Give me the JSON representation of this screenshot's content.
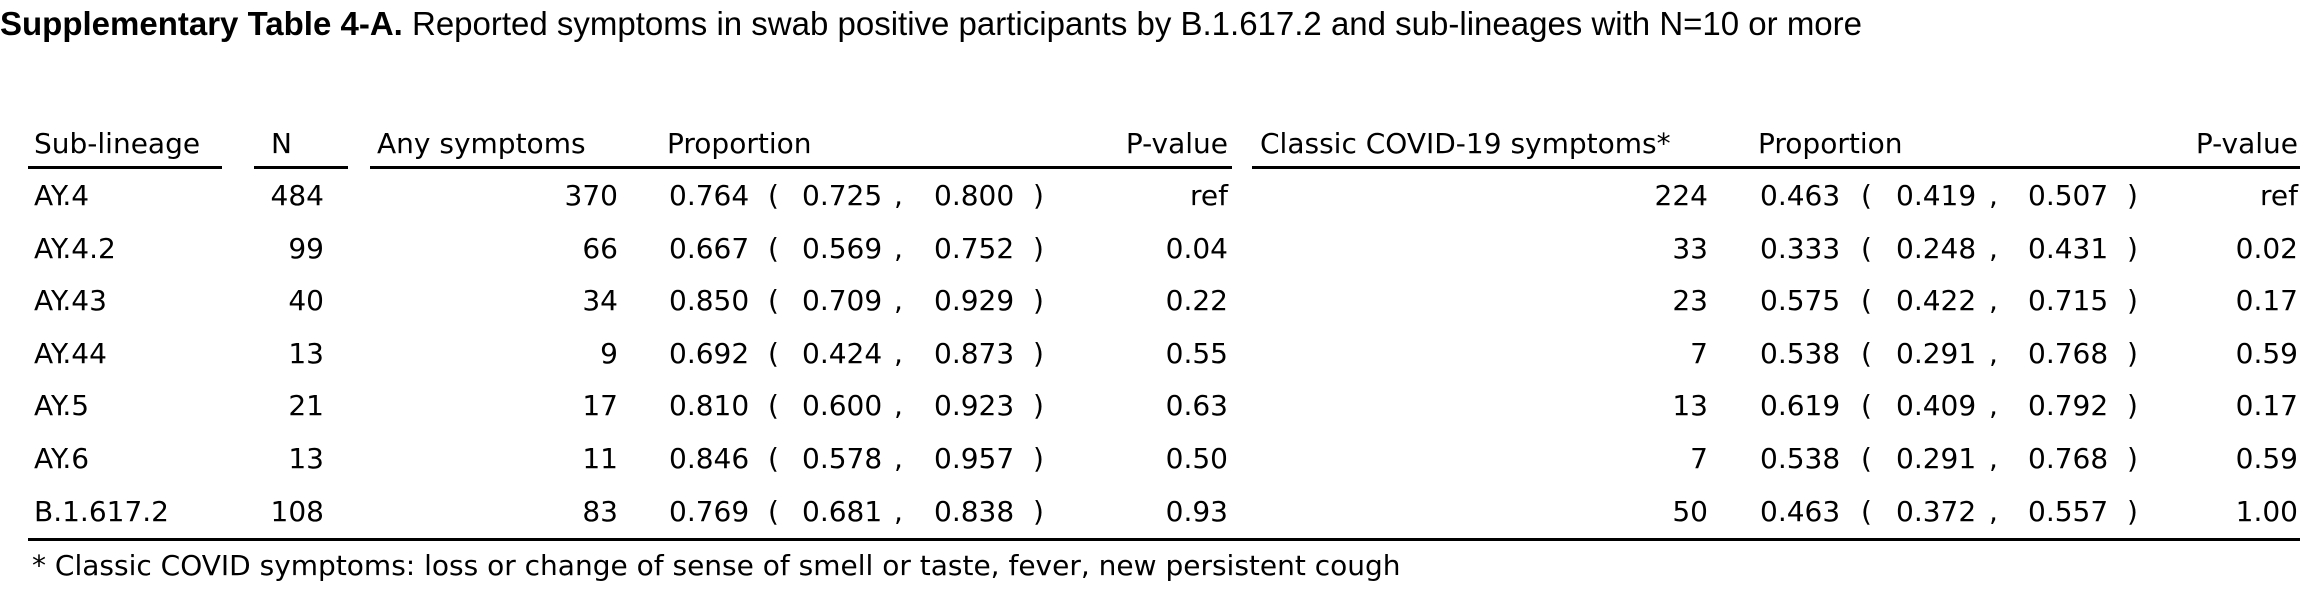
{
  "caption": {
    "label": "Supplementary Table 4-A.",
    "text": " Reported symptoms in swab positive participants by B.1.617.2 and sub-lineages with N=10 or more"
  },
  "headers": {
    "sub_lineage": "Sub-lineage",
    "n": "N",
    "any_symptoms": "Any symptoms",
    "proportion_any": "Proportion",
    "p_value_any": "P-value",
    "classic_symptoms": "Classic COVID-19 symptoms*",
    "proportion_classic": "Proportion",
    "p_value_classic": "P-value"
  },
  "ci_punct": {
    "open": "(",
    "sep": ",",
    "close": ")"
  },
  "rows": [
    {
      "lineage": "AY.4",
      "n": "484",
      "any": "370",
      "prop": "0.764",
      "lo": "0.725",
      "hi": "0.800",
      "p": "ref",
      "classic": "224",
      "cprop": "0.463",
      "clo": "0.419",
      "chi": "0.507",
      "cp": "ref"
    },
    {
      "lineage": "AY.4.2",
      "n": "99",
      "any": "66",
      "prop": "0.667",
      "lo": "0.569",
      "hi": "0.752",
      "p": "0.04",
      "classic": "33",
      "cprop": "0.333",
      "clo": "0.248",
      "chi": "0.431",
      "cp": "0.02"
    },
    {
      "lineage": "AY.43",
      "n": "40",
      "any": "34",
      "prop": "0.850",
      "lo": "0.709",
      "hi": "0.929",
      "p": "0.22",
      "classic": "23",
      "cprop": "0.575",
      "clo": "0.422",
      "chi": "0.715",
      "cp": "0.17"
    },
    {
      "lineage": "AY.44",
      "n": "13",
      "any": "9",
      "prop": "0.692",
      "lo": "0.424",
      "hi": "0.873",
      "p": "0.55",
      "classic": "7",
      "cprop": "0.538",
      "clo": "0.291",
      "chi": "0.768",
      "cp": "0.59"
    },
    {
      "lineage": "AY.5",
      "n": "21",
      "any": "17",
      "prop": "0.810",
      "lo": "0.600",
      "hi": "0.923",
      "p": "0.63",
      "classic": "13",
      "cprop": "0.619",
      "clo": "0.409",
      "chi": "0.792",
      "cp": "0.17"
    },
    {
      "lineage": "AY.6",
      "n": "13",
      "any": "11",
      "prop": "0.846",
      "lo": "0.578",
      "hi": "0.957",
      "p": "0.50",
      "classic": "7",
      "cprop": "0.538",
      "clo": "0.291",
      "chi": "0.768",
      "cp": "0.59"
    },
    {
      "lineage": "B.1.617.2",
      "n": "108",
      "any": "83",
      "prop": "0.769",
      "lo": "0.681",
      "hi": "0.838",
      "p": "0.93",
      "classic": "50",
      "cprop": "0.463",
      "clo": "0.372",
      "chi": "0.557",
      "cp": "1.00"
    }
  ],
  "footnote": "* Classic COVID symptoms: loss or change of sense of smell or taste, fever, new persistent cough"
}
